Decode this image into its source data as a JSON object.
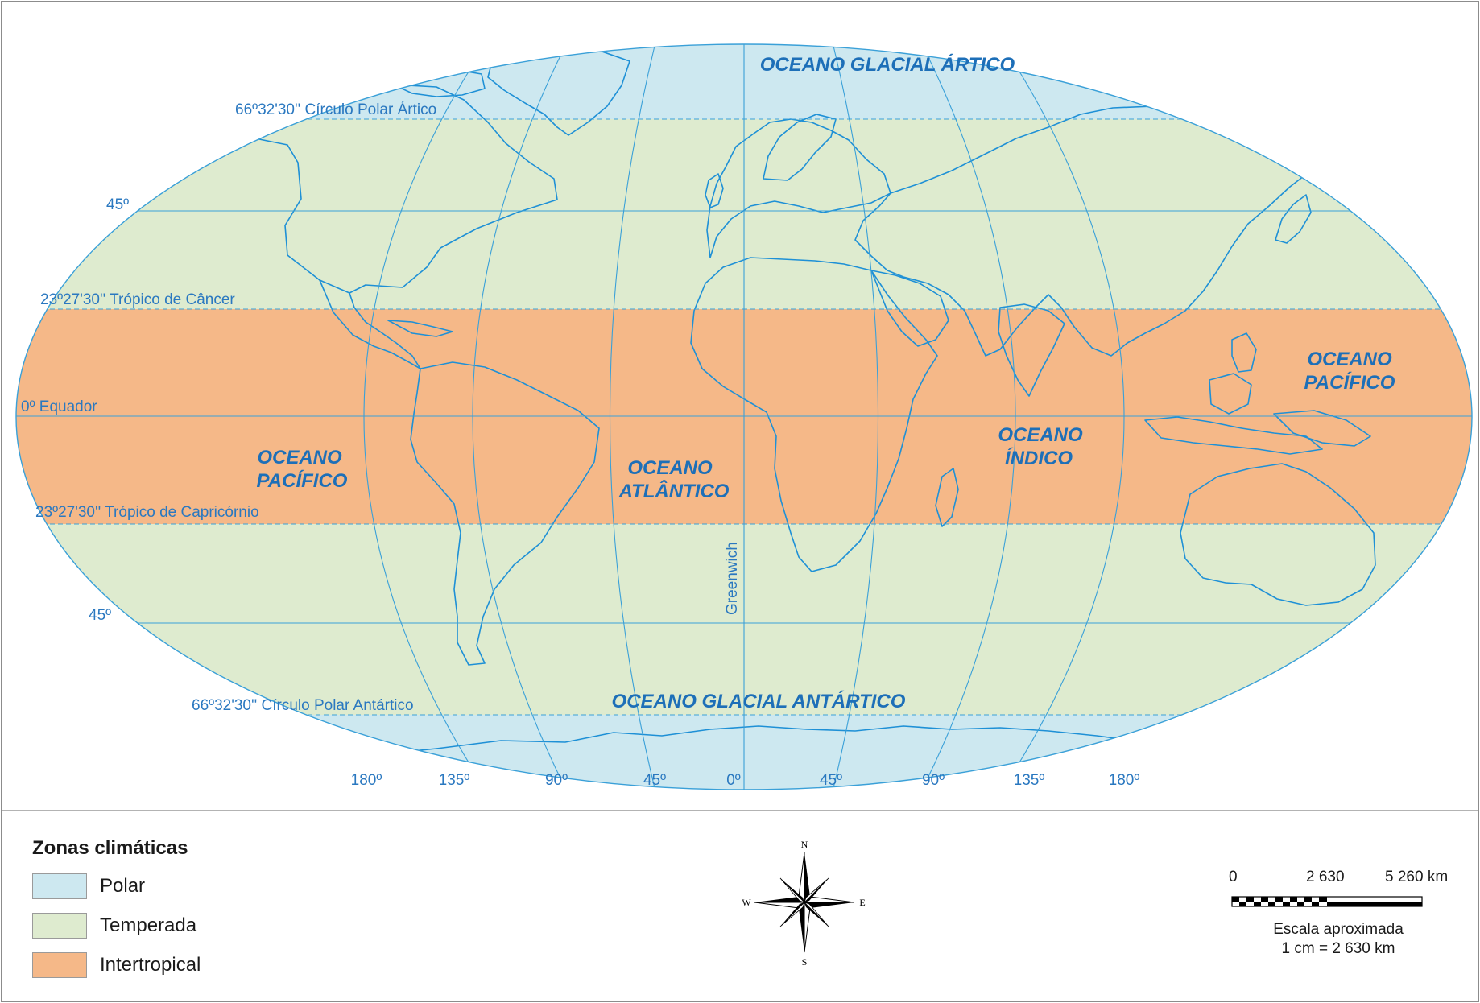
{
  "map": {
    "oceans": {
      "arctic": "OCEANO GLACIAL ÁRTICO",
      "antarctic": "OCEANO GLACIAL ANTÁRTICO",
      "pacific_west_line1": "OCEANO",
      "pacific_west_line2": "PACÍFICO",
      "atlantic_line1": "OCEANO",
      "atlantic_line2": "ATLÂNTICO",
      "indian_line1": "OCEANO",
      "indian_line2": "ÍNDICO",
      "pacific_east_line1": "OCEANO",
      "pacific_east_line2": "PACÍFICO"
    },
    "parallels": {
      "arctic_circle": "66º32'30'' Círculo Polar Ártico",
      "north_45": "45º",
      "tropic_cancer": "23º27'30'' Trópico de Câncer",
      "equator": "0º Equador",
      "tropic_capricorn": "23º27'30'' Trópico de Capricórnio",
      "south_45": "45º",
      "antarctic_circle": "66º32'30'' Círculo Polar Antártico"
    },
    "meridian_label": "Greenwich",
    "longitudes": [
      "180º",
      "135º",
      "90º",
      "45º",
      "0º",
      "45º",
      "90º",
      "135º",
      "180º"
    ],
    "zone_colors": {
      "polar": "#cde8f0",
      "temperate": "#deebcf",
      "intertropical": "#f5b888",
      "lines": "#3aa0d8",
      "coast": "#1e90d6"
    }
  },
  "legend": {
    "title": "Zonas climáticas",
    "items": [
      {
        "label": "Polar",
        "color": "#cde8f0"
      },
      {
        "label": "Temperada",
        "color": "#deebcf"
      },
      {
        "label": "Intertropical",
        "color": "#f5b888"
      }
    ]
  },
  "compass": {
    "n": "N",
    "s": "S",
    "e": "E",
    "w": "W"
  },
  "scale": {
    "ticks": [
      "0",
      "2 630",
      "5 260 km"
    ],
    "caption_line1": "Escala aproximada",
    "caption_line2": "1 cm = 2 630 km"
  }
}
